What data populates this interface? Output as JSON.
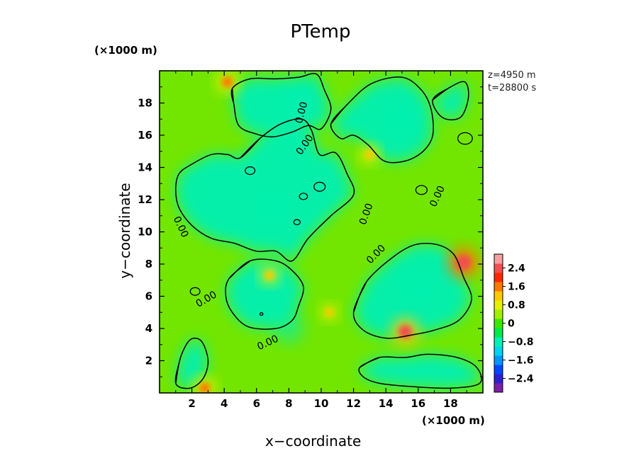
{
  "chart_data": {
    "type": "heatmap",
    "title": "PTemp",
    "xlabel": "x−coordinate",
    "ylabel": "y−coordinate",
    "x_unit": "(×1000 m)",
    "y_unit": "(×1000 m)",
    "xlim": [
      0,
      20
    ],
    "ylim": [
      0,
      20
    ],
    "x_ticks": [
      "2",
      "4",
      "6",
      "8",
      "10",
      "12",
      "14",
      "16",
      "18"
    ],
    "y_ticks": [
      "2",
      "4",
      "6",
      "8",
      "10",
      "12",
      "14",
      "16",
      "18"
    ],
    "info_lines": [
      "z=4950  m",
      "t=28800  s"
    ],
    "colorbar": {
      "range": [
        -3.0,
        3.0
      ],
      "tick_labels": [
        "2.4",
        "1.6",
        "0.8",
        "0",
        "−0.8",
        "−1.6",
        "−2.4"
      ],
      "colors": [
        "#7a1fa8",
        "#2e1fd0",
        "#0048ff",
        "#0096ff",
        "#00d2f0",
        "#00f0b4",
        "#00e84a",
        "#3ce800",
        "#a0f000",
        "#e6f000",
        "#ffc800",
        "#ff7800",
        "#ff2800",
        "#f05050",
        "#f5a0a0"
      ]
    },
    "contour_level": 0.0,
    "contour_labels": [
      "0.00",
      "0.00",
      "0.00",
      "0.00",
      "0.00",
      "0.00",
      "0.00",
      "0.00"
    ],
    "hotspots": [
      {
        "x": 18.8,
        "y": 8.1,
        "value": 2.6
      },
      {
        "x": 15.2,
        "y": 3.8,
        "value": 2.2
      },
      {
        "x": 4.2,
        "y": 19.3,
        "value": 1.6
      },
      {
        "x": 2.8,
        "y": 0.3,
        "value": 1.6
      },
      {
        "x": 13.0,
        "y": 14.8,
        "value": 1.2
      },
      {
        "x": 6.8,
        "y": 7.3,
        "value": 1.2
      },
      {
        "x": 10.5,
        "y": 5.0,
        "value": 1.0
      }
    ],
    "coldspots": [
      {
        "x": 7.0,
        "y": 11.5,
        "value": -0.8
      },
      {
        "x": 16.0,
        "y": 6.5,
        "value": -0.8
      },
      {
        "x": 15.0,
        "y": 17.0,
        "value": -0.7
      },
      {
        "x": 8.5,
        "y": 18.0,
        "value": -0.7
      },
      {
        "x": 8.0,
        "y": 4.0,
        "value": -0.6
      }
    ]
  }
}
